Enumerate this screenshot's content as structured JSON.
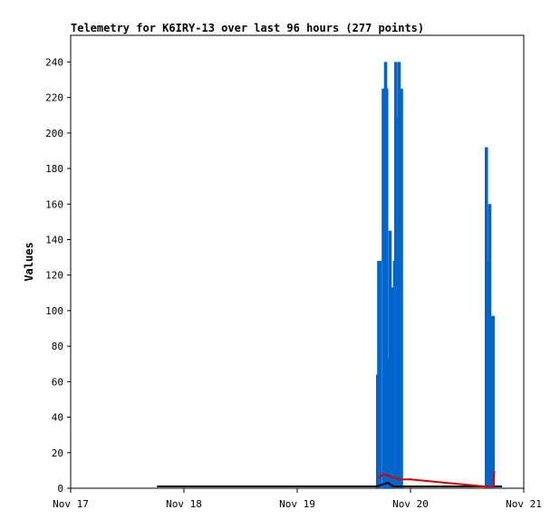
{
  "chart_data": {
    "type": "line",
    "title": "Telemetry for K6IRY-13 over last 96 hours (277 points)",
    "xlabel": "",
    "ylabel": "Values",
    "xlim": [
      "Nov 17",
      "Nov 21"
    ],
    "x_tick_labels": [
      "Nov 17",
      "Nov 18",
      "Nov 19",
      "Nov 20",
      "Nov 21"
    ],
    "ylim": [
      0,
      255
    ],
    "y_ticks": [
      0,
      20,
      40,
      60,
      80,
      100,
      120,
      140,
      160,
      180,
      200,
      220,
      240
    ],
    "grid": false,
    "series": [
      {
        "color": "#0066cc",
        "style": "spikes",
        "points": [
          [
            2.71,
            64
          ],
          [
            2.72,
            128
          ],
          [
            2.73,
            128
          ],
          [
            2.76,
            225
          ],
          [
            2.77,
            225
          ],
          [
            2.78,
            240
          ],
          [
            2.79,
            225
          ],
          [
            2.81,
            73
          ],
          [
            2.82,
            145
          ],
          [
            2.83,
            64
          ],
          [
            2.84,
            113
          ],
          [
            2.85,
            56
          ],
          [
            2.86,
            128
          ],
          [
            2.87,
            240
          ],
          [
            2.88,
            64
          ],
          [
            2.89,
            209
          ],
          [
            2.9,
            240
          ],
          [
            2.91,
            113
          ],
          [
            2.92,
            225
          ],
          [
            3.67,
            192
          ],
          [
            3.68,
            128
          ],
          [
            3.69,
            96
          ],
          [
            3.7,
            160
          ],
          [
            3.71,
            97
          ],
          [
            3.72,
            97
          ],
          [
            3.73,
            97
          ]
        ]
      },
      {
        "color": "#000000",
        "style": "line",
        "points": [
          [
            0.77,
            1
          ],
          [
            2.7,
            1
          ],
          [
            2.75,
            2
          ],
          [
            2.8,
            3
          ],
          [
            2.85,
            1
          ],
          [
            3.8,
            1
          ]
        ]
      },
      {
        "color": "#dd0000",
        "style": "line",
        "points": [
          [
            2.72,
            6
          ],
          [
            2.76,
            8
          ],
          [
            2.8,
            7
          ],
          [
            2.9,
            5
          ],
          [
            3.0,
            5
          ],
          [
            3.65,
            1
          ],
          [
            3.73,
            1
          ],
          [
            3.74,
            9
          ]
        ]
      }
    ]
  }
}
